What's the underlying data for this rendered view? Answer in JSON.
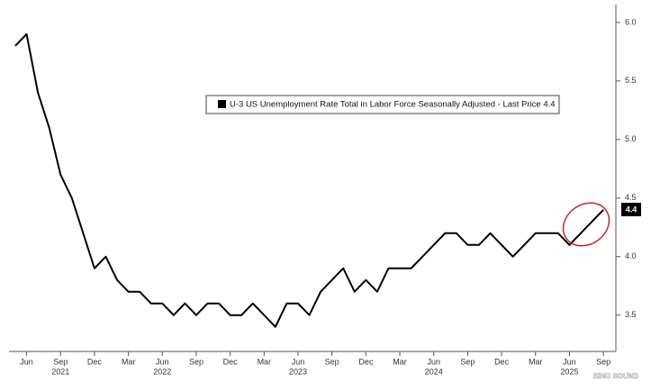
{
  "chart_data": {
    "type": "line",
    "x": [
      "2021-05",
      "2021-06",
      "2021-07",
      "2021-08",
      "2021-09",
      "2021-10",
      "2021-11",
      "2021-12",
      "2022-01",
      "2022-02",
      "2022-03",
      "2022-04",
      "2022-05",
      "2022-06",
      "2022-07",
      "2022-08",
      "2022-09",
      "2022-10",
      "2022-11",
      "2022-12",
      "2023-01",
      "2023-02",
      "2023-03",
      "2023-04",
      "2023-05",
      "2023-06",
      "2023-07",
      "2023-08",
      "2023-09",
      "2023-10",
      "2023-11",
      "2023-12",
      "2024-01",
      "2024-02",
      "2024-03",
      "2024-04",
      "2024-05",
      "2024-06",
      "2024-07",
      "2024-08",
      "2024-09",
      "2024-10",
      "2024-11",
      "2024-12",
      "2025-01",
      "2025-02",
      "2025-03",
      "2025-04",
      "2025-05",
      "2025-06",
      "2025-07",
      "2025-08",
      "2025-09"
    ],
    "series": [
      {
        "name": "U-3 US Unemployment Rate Total in Labor Force Seasonally Adjusted - Last Price 4.4",
        "color": "#000000",
        "values": [
          5.8,
          5.9,
          5.4,
          5.1,
          4.7,
          4.5,
          4.2,
          3.9,
          4.0,
          3.8,
          3.7,
          3.7,
          3.6,
          3.6,
          3.5,
          3.6,
          3.5,
          3.6,
          3.6,
          3.5,
          3.5,
          3.6,
          3.5,
          3.4,
          3.6,
          3.6,
          3.5,
          3.7,
          3.8,
          3.9,
          3.7,
          3.8,
          3.7,
          3.9,
          3.9,
          3.9,
          4.0,
          4.1,
          4.2,
          4.2,
          4.1,
          4.1,
          4.2,
          4.1,
          4.0,
          4.1,
          4.2,
          4.2,
          4.2,
          4.1,
          4.2,
          4.3,
          4.4
        ]
      }
    ],
    "ylim": [
      3.19,
      6.13
    ],
    "yticks": [
      3.5,
      {
        "value": 4,
        "label": "4.0"
      },
      4.5,
      {
        "value": 5,
        "label": "5.0"
      },
      5.5,
      {
        "value": 6,
        "label": "6.0"
      }
    ],
    "xticks": [
      {
        "value": "2021-06",
        "label": "Jun"
      },
      {
        "value": "2021-09",
        "label": "Sep"
      },
      {
        "value": "2021-12",
        "label": "Dec"
      },
      {
        "value": "2022-03",
        "label": "Mar"
      },
      {
        "value": "2022-06",
        "label": "Jun"
      },
      {
        "value": "2022-09",
        "label": "Sep"
      },
      {
        "value": "2022-12",
        "label": "Dec"
      },
      {
        "value": "2023-03",
        "label": "Mar"
      },
      {
        "value": "2023-06",
        "label": "Jun"
      },
      {
        "value": "2023-09",
        "label": "Sep"
      },
      {
        "value": "2023-12",
        "label": "Dec"
      },
      {
        "value": "2024-03",
        "label": "Mar"
      },
      {
        "value": "2024-06",
        "label": "Jun"
      },
      {
        "value": "2024-09",
        "label": "Sep"
      },
      {
        "value": "2024-12",
        "label": "Dec"
      },
      {
        "value": "2025-03",
        "label": "Mar"
      },
      {
        "value": "2025-06",
        "label": "Jun"
      },
      {
        "value": "2025-09",
        "label": "Sep"
      }
    ],
    "year_ticks": [
      {
        "value": "2021-09",
        "label": "2021"
      },
      {
        "value": "2022-06",
        "label": "2022"
      },
      {
        "value": "2023-06",
        "label": "2023"
      },
      {
        "value": "2024-06",
        "label": "2024"
      },
      {
        "value": "2025-06",
        "label": "2025"
      }
    ],
    "grid": false,
    "watermark": "SINO SOUND"
  }
}
